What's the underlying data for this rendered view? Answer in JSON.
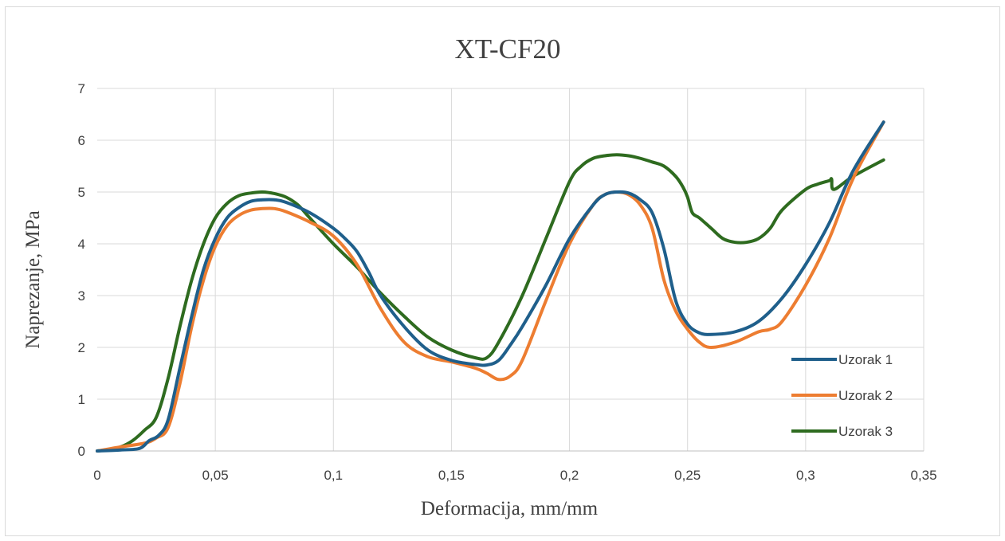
{
  "chart_data": {
    "type": "line",
    "title": "XT-CF20",
    "xlabel": "Deformacija, mm/mm",
    "ylabel": "Naprezanje, MPa",
    "xlim": [
      0,
      0.35
    ],
    "ylim": [
      0,
      7
    ],
    "x_ticks": [
      0,
      0.05,
      0.1,
      0.15,
      0.2,
      0.25,
      0.3,
      0.35
    ],
    "x_tick_labels": [
      "0",
      "0,05",
      "0,1",
      "0,15",
      "0,2",
      "0,25",
      "0,3",
      "0,35"
    ],
    "y_ticks": [
      0,
      1,
      2,
      3,
      4,
      5,
      6,
      7
    ],
    "y_tick_labels": [
      "0",
      "1",
      "2",
      "3",
      "4",
      "5",
      "6",
      "7"
    ],
    "grid": true,
    "legend_position": "bottom-right",
    "series": [
      {
        "name": "Uzorak 1",
        "color": "#1f5f8b",
        "x": [
          0,
          0.01,
          0.018,
          0.022,
          0.026,
          0.03,
          0.035,
          0.04,
          0.045,
          0.05,
          0.055,
          0.06,
          0.065,
          0.07,
          0.075,
          0.08,
          0.09,
          0.1,
          0.105,
          0.11,
          0.115,
          0.12,
          0.13,
          0.14,
          0.15,
          0.16,
          0.165,
          0.17,
          0.175,
          0.18,
          0.19,
          0.2,
          0.21,
          0.215,
          0.22,
          0.225,
          0.23,
          0.235,
          0.24,
          0.245,
          0.25,
          0.255,
          0.26,
          0.27,
          0.28,
          0.29,
          0.3,
          0.31,
          0.32,
          0.333
        ],
        "y": [
          0,
          0.02,
          0.05,
          0.2,
          0.3,
          0.6,
          1.6,
          2.6,
          3.5,
          4.1,
          4.5,
          4.7,
          4.82,
          4.85,
          4.85,
          4.8,
          4.6,
          4.3,
          4.1,
          3.85,
          3.45,
          3.0,
          2.4,
          1.95,
          1.75,
          1.67,
          1.66,
          1.75,
          2.05,
          2.4,
          3.2,
          4.1,
          4.75,
          4.95,
          5.0,
          4.98,
          4.85,
          4.6,
          3.9,
          2.9,
          2.45,
          2.28,
          2.25,
          2.3,
          2.5,
          2.95,
          3.6,
          4.4,
          5.4,
          6.35
        ]
      },
      {
        "name": "Uzorak 2",
        "color": "#ed7d31",
        "x": [
          0,
          0.01,
          0.02,
          0.025,
          0.03,
          0.035,
          0.04,
          0.045,
          0.05,
          0.055,
          0.06,
          0.065,
          0.07,
          0.075,
          0.08,
          0.09,
          0.1,
          0.11,
          0.12,
          0.13,
          0.14,
          0.15,
          0.16,
          0.165,
          0.17,
          0.175,
          0.18,
          0.19,
          0.2,
          0.21,
          0.215,
          0.22,
          0.225,
          0.23,
          0.235,
          0.24,
          0.245,
          0.25,
          0.255,
          0.26,
          0.27,
          0.28,
          0.285,
          0.29,
          0.3,
          0.31,
          0.32,
          0.333
        ],
        "y": [
          0,
          0.08,
          0.15,
          0.25,
          0.45,
          1.3,
          2.4,
          3.3,
          3.95,
          4.35,
          4.55,
          4.65,
          4.68,
          4.68,
          4.62,
          4.42,
          4.15,
          3.6,
          2.75,
          2.1,
          1.82,
          1.72,
          1.6,
          1.5,
          1.38,
          1.45,
          1.75,
          2.9,
          4.0,
          4.75,
          4.95,
          5.0,
          4.95,
          4.75,
          4.3,
          3.3,
          2.7,
          2.35,
          2.1,
          2.0,
          2.1,
          2.3,
          2.35,
          2.5,
          3.2,
          4.1,
          5.25,
          6.35
        ]
      },
      {
        "name": "Uzorak 3",
        "color": "#2e6b1f",
        "x": [
          0,
          0.005,
          0.01,
          0.015,
          0.02,
          0.025,
          0.03,
          0.035,
          0.04,
          0.045,
          0.05,
          0.055,
          0.06,
          0.065,
          0.07,
          0.075,
          0.08,
          0.085,
          0.09,
          0.1,
          0.11,
          0.12,
          0.13,
          0.14,
          0.15,
          0.16,
          0.165,
          0.17,
          0.18,
          0.19,
          0.2,
          0.205,
          0.21,
          0.215,
          0.22,
          0.225,
          0.23,
          0.235,
          0.24,
          0.245,
          0.248,
          0.25,
          0.252,
          0.255,
          0.26,
          0.265,
          0.27,
          0.275,
          0.28,
          0.285,
          0.29,
          0.3,
          0.305,
          0.31,
          0.311,
          0.312,
          0.32,
          0.333
        ],
        "y": [
          0,
          0.03,
          0.08,
          0.2,
          0.4,
          0.65,
          1.4,
          2.4,
          3.3,
          4.0,
          4.5,
          4.78,
          4.93,
          4.98,
          5.0,
          4.97,
          4.9,
          4.75,
          4.5,
          4.0,
          3.55,
          3.05,
          2.6,
          2.2,
          1.95,
          1.8,
          1.8,
          2.1,
          3.0,
          4.1,
          5.2,
          5.5,
          5.65,
          5.7,
          5.72,
          5.7,
          5.65,
          5.58,
          5.5,
          5.3,
          5.1,
          4.9,
          4.6,
          4.5,
          4.3,
          4.1,
          4.03,
          4.03,
          4.1,
          4.3,
          4.65,
          5.05,
          5.15,
          5.22,
          5.25,
          5.05,
          5.3,
          5.62
        ]
      }
    ]
  }
}
